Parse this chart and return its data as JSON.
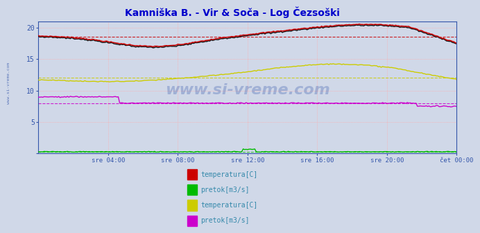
{
  "title": "Kamniška B. - Vir & Soča - Log Čezsoški",
  "title_color": "#0000cc",
  "bg_color": "#d0d8e8",
  "xlim": [
    0,
    288
  ],
  "ylim": [
    0,
    21
  ],
  "yticks": [
    0,
    5,
    10,
    15,
    20
  ],
  "xtick_labels": [
    "sre 04:00",
    "sre 08:00",
    "sre 12:00",
    "sre 16:00",
    "sre 20:00",
    "čet 00:00"
  ],
  "xtick_positions": [
    48,
    96,
    144,
    192,
    240,
    288
  ],
  "grid_color": "#ffaaaa",
  "legend_items": [
    {
      "label": "temperatura[C]",
      "color": "#cc0000"
    },
    {
      "label": "pretok[m3/s]",
      "color": "#00bb00"
    },
    {
      "label": "temperatura[C]",
      "color": "#cccc00"
    },
    {
      "label": "pretok[m3/s]",
      "color": "#cc00cc"
    }
  ],
  "watermark": "www.si-vreme.com",
  "watermark_color": "#3355aa",
  "sidebar": "www.si-vreme.com",
  "avg_temp1": 18.5,
  "avg_flow1": 0.28,
  "avg_temp2": 12.0,
  "avg_flow2": 8.0,
  "line_colors": {
    "temp1": "#cc0000",
    "temp1b": "#111111",
    "flow1": "#00bb00",
    "temp2": "#cccc00",
    "flow2": "#cc00cc"
  }
}
